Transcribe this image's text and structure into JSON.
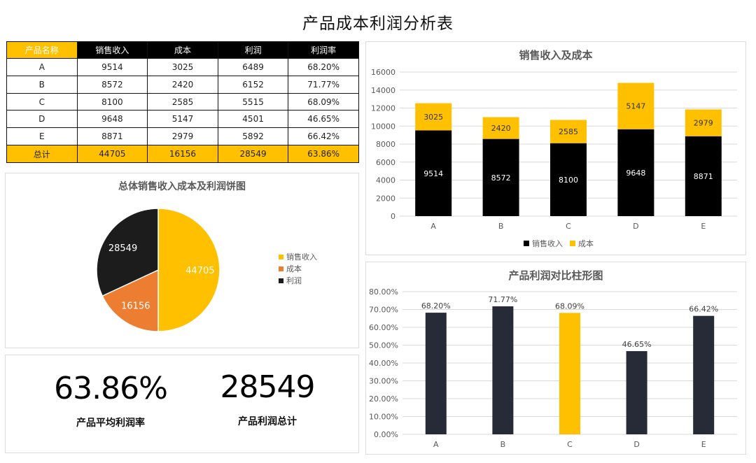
{
  "title": "产品成本利润分析表",
  "table": {
    "headers": [
      "产品名称",
      "销售收入",
      "成本",
      "利润",
      "利润率"
    ],
    "rows": [
      [
        "A",
        "9514",
        "3025",
        "6489",
        "68.20%"
      ],
      [
        "B",
        "8572",
        "2420",
        "6152",
        "71.77%"
      ],
      [
        "C",
        "8100",
        "2585",
        "5515",
        "68.09%"
      ],
      [
        "D",
        "9648",
        "5147",
        "4501",
        "46.65%"
      ],
      [
        "E",
        "8871",
        "2979",
        "5892",
        "66.42%"
      ]
    ],
    "total": [
      "总计",
      "44705",
      "16156",
      "28549",
      "63.86%"
    ]
  },
  "kpis": [
    {
      "value": "63.86%",
      "label": "产品平均利润率"
    },
    {
      "value": "28549",
      "label": "产品利润总计"
    }
  ],
  "colors": {
    "yellow": "#FFC000",
    "black": "#000000",
    "orange": "#ED7D31",
    "dark": "#1C1C1C",
    "navy": "#262B37"
  },
  "chart_data": [
    {
      "id": "stacked",
      "type": "bar",
      "title": "销售收入及成本",
      "categories": [
        "A",
        "B",
        "C",
        "D",
        "E"
      ],
      "series": [
        {
          "name": "销售收入",
          "values": [
            9514,
            8572,
            8100,
            9648,
            8871
          ],
          "color": "#000000"
        },
        {
          "name": "成本",
          "values": [
            3025,
            2420,
            2585,
            5147,
            2979
          ],
          "color": "#FFC000"
        }
      ],
      "stacked": true,
      "ylim": [
        0,
        16000
      ],
      "yticks": [
        0,
        2000,
        4000,
        6000,
        8000,
        10000,
        12000,
        14000,
        16000
      ],
      "grid": true,
      "legend": "bottom"
    },
    {
      "id": "pie",
      "type": "pie",
      "title": "总体销售收入成本及利润饼图",
      "labels": [
        "销售收入",
        "成本",
        "利润"
      ],
      "values": [
        44705,
        16156,
        28549
      ],
      "colors": [
        "#FFC000",
        "#ED7D31",
        "#1C1C1C"
      ],
      "legend": "right"
    },
    {
      "id": "margin",
      "type": "bar",
      "title": "产品利润对比柱形图",
      "categories": [
        "A",
        "B",
        "C",
        "D",
        "E"
      ],
      "values": [
        68.2,
        71.77,
        68.09,
        46.65,
        66.42
      ],
      "labels": [
        "68.20%",
        "71.77%",
        "68.09%",
        "46.65%",
        "66.42%"
      ],
      "colors": [
        "#262B37",
        "#262B37",
        "#FFC000",
        "#262B37",
        "#262B37"
      ],
      "ylim": [
        0,
        80
      ],
      "yticks": [
        "0.00%",
        "10.00%",
        "20.00%",
        "30.00%",
        "40.00%",
        "50.00%",
        "60.00%",
        "70.00%",
        "80.00%"
      ],
      "grid": true
    }
  ]
}
